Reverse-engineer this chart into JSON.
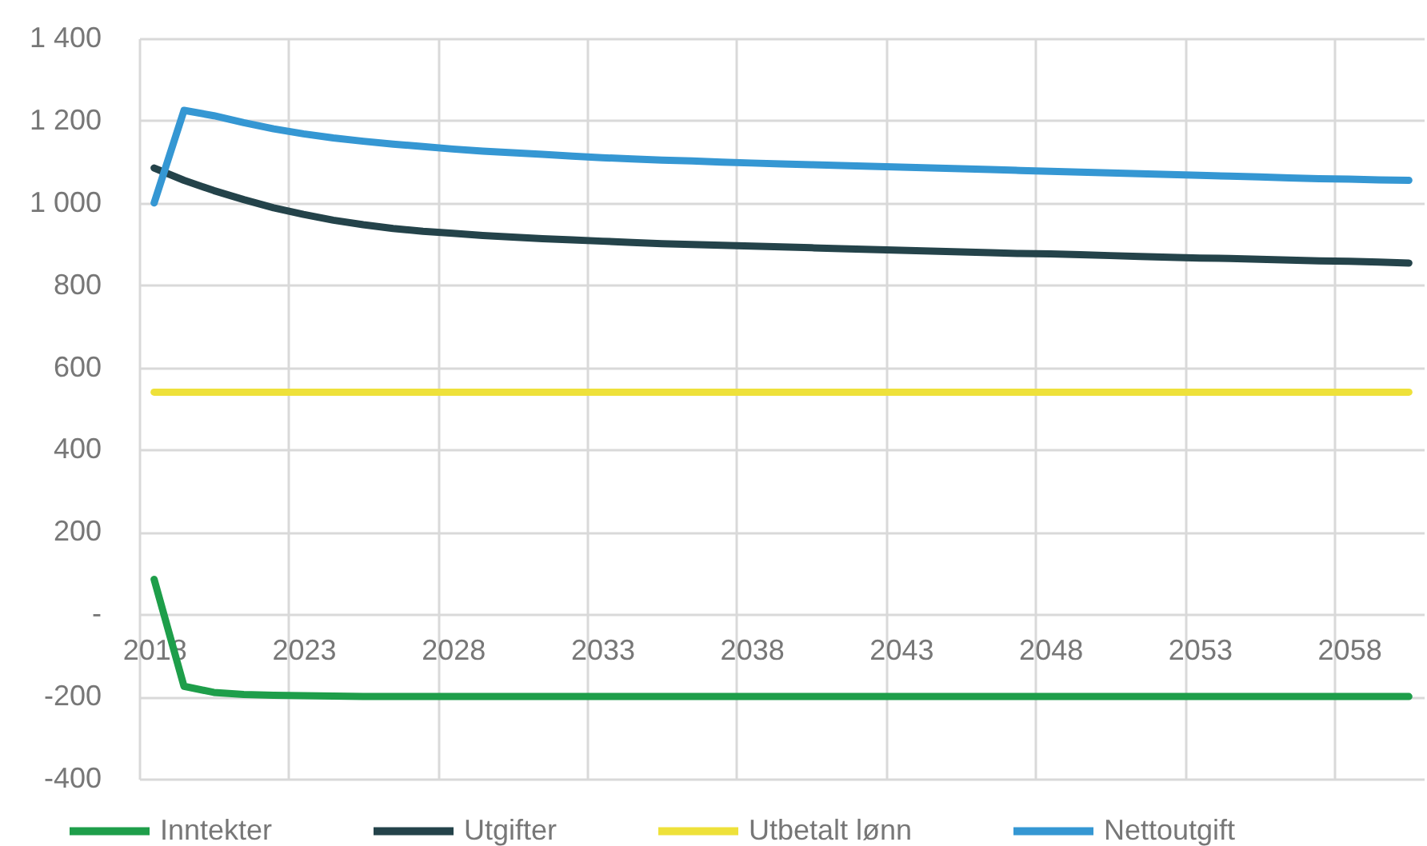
{
  "chart_data": {
    "type": "line",
    "categories": [
      "2018",
      null,
      null,
      null,
      null,
      "2023",
      null,
      null,
      null,
      null,
      "2028",
      null,
      null,
      null,
      null,
      "2033",
      null,
      null,
      null,
      null,
      "2038",
      null,
      null,
      null,
      null,
      "2043",
      null,
      null,
      null,
      null,
      "2048",
      null,
      null,
      null,
      null,
      "2053",
      null,
      null,
      null,
      null,
      "2058",
      null,
      null
    ],
    "series": [
      {
        "name": "Inntekter",
        "color": "#1e9e4a",
        "values": [
          85,
          -175,
          -190,
          -195,
          -197,
          -198,
          -199,
          -200,
          -200,
          -200,
          -200,
          -200,
          -200,
          -200,
          -200,
          -200,
          -200,
          -200,
          -200,
          -200,
          -200,
          -200,
          -200,
          -200,
          -200,
          -200,
          -200,
          -200,
          -200,
          -200,
          -200,
          -200,
          -200,
          -200,
          -200,
          -200,
          -200,
          -200,
          -200,
          -200,
          -200,
          -200,
          -200
        ]
      },
      {
        "name": "Utgifter",
        "color": "#24434a",
        "values": [
          1085,
          1055,
          1030,
          1008,
          988,
          972,
          958,
          947,
          938,
          931,
          926,
          921,
          917,
          913,
          910,
          907,
          904,
          901,
          899,
          897,
          895,
          893,
          891,
          889,
          887,
          885,
          883,
          881,
          879,
          877,
          876,
          874,
          872,
          870,
          868,
          866,
          865,
          863,
          861,
          859,
          858,
          856,
          854
        ]
      },
      {
        "name": "Utbetalt lønn",
        "color": "#eee13a",
        "values": [
          540,
          540,
          540,
          540,
          540,
          540,
          540,
          540,
          540,
          540,
          540,
          540,
          540,
          540,
          540,
          540,
          540,
          540,
          540,
          540,
          540,
          540,
          540,
          540,
          540,
          540,
          540,
          540,
          540,
          540,
          540,
          540,
          540,
          540,
          540,
          540,
          540,
          540,
          540,
          540,
          540,
          540,
          540
        ]
      },
      {
        "name": "Nettoutgift",
        "color": "#3597d3",
        "values": [
          1000,
          1225,
          1212,
          1195,
          1180,
          1168,
          1158,
          1150,
          1143,
          1137,
          1131,
          1126,
          1122,
          1118,
          1114,
          1110,
          1107,
          1104,
          1102,
          1099,
          1097,
          1095,
          1093,
          1091,
          1089,
          1087,
          1085,
          1083,
          1081,
          1079,
          1077,
          1075,
          1073,
          1071,
          1069,
          1067,
          1065,
          1063,
          1061,
          1059,
          1058,
          1056,
          1055
        ]
      }
    ],
    "ylim": [
      -400,
      1400
    ],
    "yticks": [
      -400,
      -200,
      {
        "value": 0,
        "label": "-"
      },
      200,
      400,
      600,
      800,
      {
        "value": 1000,
        "label": "1 000"
      },
      {
        "value": 1200,
        "label": "1 200"
      },
      {
        "value": 1400,
        "label": "1 400"
      }
    ],
    "grid": true,
    "legend": "bottom"
  }
}
